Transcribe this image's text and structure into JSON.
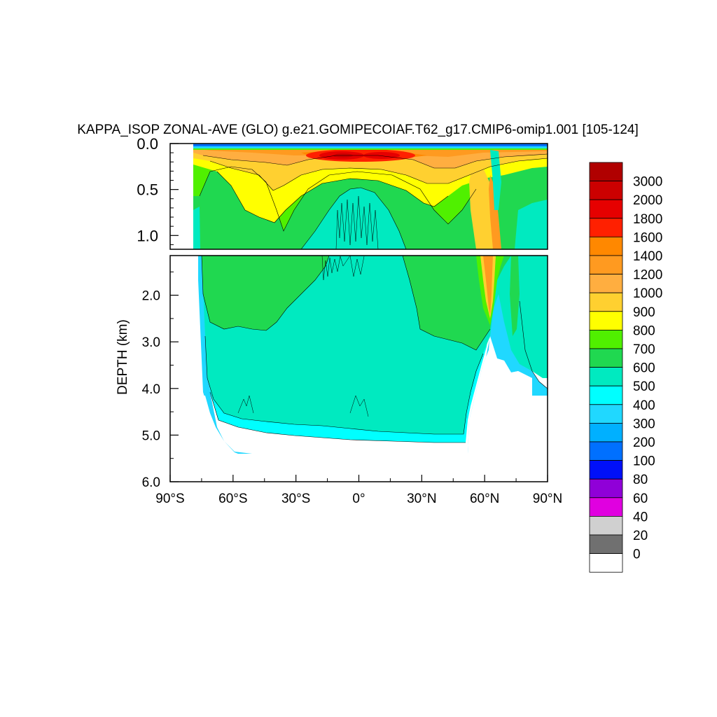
{
  "chart_data": {
    "type": "heatmap",
    "title": "KAPPA_ISOP ZONAL-AVE (GLO) g.e21.GOMIPECOIAF.T62_g17.CMIP6-omip1.001 [105-124]",
    "ylabel": "DEPTH (km)",
    "x_ticks": [
      {
        "value": -90,
        "label": "90°S"
      },
      {
        "value": -60,
        "label": "60°S"
      },
      {
        "value": -30,
        "label": "30°S"
      },
      {
        "value": 0,
        "label": "0°"
      },
      {
        "value": 30,
        "label": "30°N"
      },
      {
        "value": 60,
        "label": "60°N"
      },
      {
        "value": 90,
        "label": "90°N"
      }
    ],
    "xlim": [
      -90,
      90
    ],
    "upper_panel": {
      "ylim": [
        0.0,
        1.15
      ],
      "y_ticks": [
        {
          "value": 0.0,
          "label": "0.0"
        },
        {
          "value": 0.5,
          "label": "0.5"
        },
        {
          "value": 1.0,
          "label": "1.0"
        }
      ]
    },
    "lower_panel": {
      "ylim": [
        1.15,
        6.0
      ],
      "y_ticks": [
        {
          "value": 2.0,
          "label": "2.0"
        },
        {
          "value": 3.0,
          "label": "3.0"
        },
        {
          "value": 4.0,
          "label": "4.0"
        },
        {
          "value": 5.0,
          "label": "5.0"
        },
        {
          "value": 6.0,
          "label": "6.0"
        }
      ]
    },
    "colorbar": {
      "levels": [
        "3000",
        "2000",
        "1800",
        "1600",
        "1400",
        "1200",
        "1000",
        "900",
        "800",
        "700",
        "600",
        "500",
        "400",
        "300",
        "200",
        "100",
        "80",
        "60",
        "40",
        "20",
        "0"
      ],
      "colors": [
        "#b00000",
        "#cc0000",
        "#e60000",
        "#ff2000",
        "#ff8800",
        "#ff9a20",
        "#ffae40",
        "#ffd030",
        "#ffff00",
        "#50f000",
        "#20d850",
        "#00eac0",
        "#00ffff",
        "#20d8ff",
        "#00b0ff",
        "#0070ff",
        "#0010f8",
        "#9000d8",
        "#e000e0",
        "#d0d0d0",
        "#707070",
        "#ffffff"
      ]
    },
    "regions": [
      {
        "name": "surface-band",
        "value_range": "100-1200",
        "lat": [
          -73,
          90
        ],
        "depth": [
          0.0,
          0.03
        ]
      },
      {
        "name": "tropical-upper-maximum",
        "value_range": "1600-2000",
        "lat": [
          -20,
          20
        ],
        "depth": [
          0.08,
          0.22
        ]
      },
      {
        "name": "midlatitude-upper",
        "value_range": "800-1200",
        "lat": [
          -60,
          60
        ],
        "depth": [
          0.05,
          0.9
        ]
      },
      {
        "name": "intermediate",
        "value_range": "600-800",
        "lat": [
          -73,
          80
        ],
        "depth": [
          0.3,
          2.8
        ]
      },
      {
        "name": "deep-ocean",
        "value_range": "500-600",
        "lat": [
          -72,
          52
        ],
        "depth": [
          1.5,
          4.8
        ]
      },
      {
        "name": "abyssal",
        "value_range": "300-500",
        "lat": [
          -72,
          52
        ],
        "depth": [
          4.5,
          5.4
        ]
      },
      {
        "name": "north-atlantic-column",
        "value_range": "900-1400",
        "lat": [
          57,
          67
        ],
        "depth": [
          0.2,
          2.6
        ]
      }
    ]
  }
}
